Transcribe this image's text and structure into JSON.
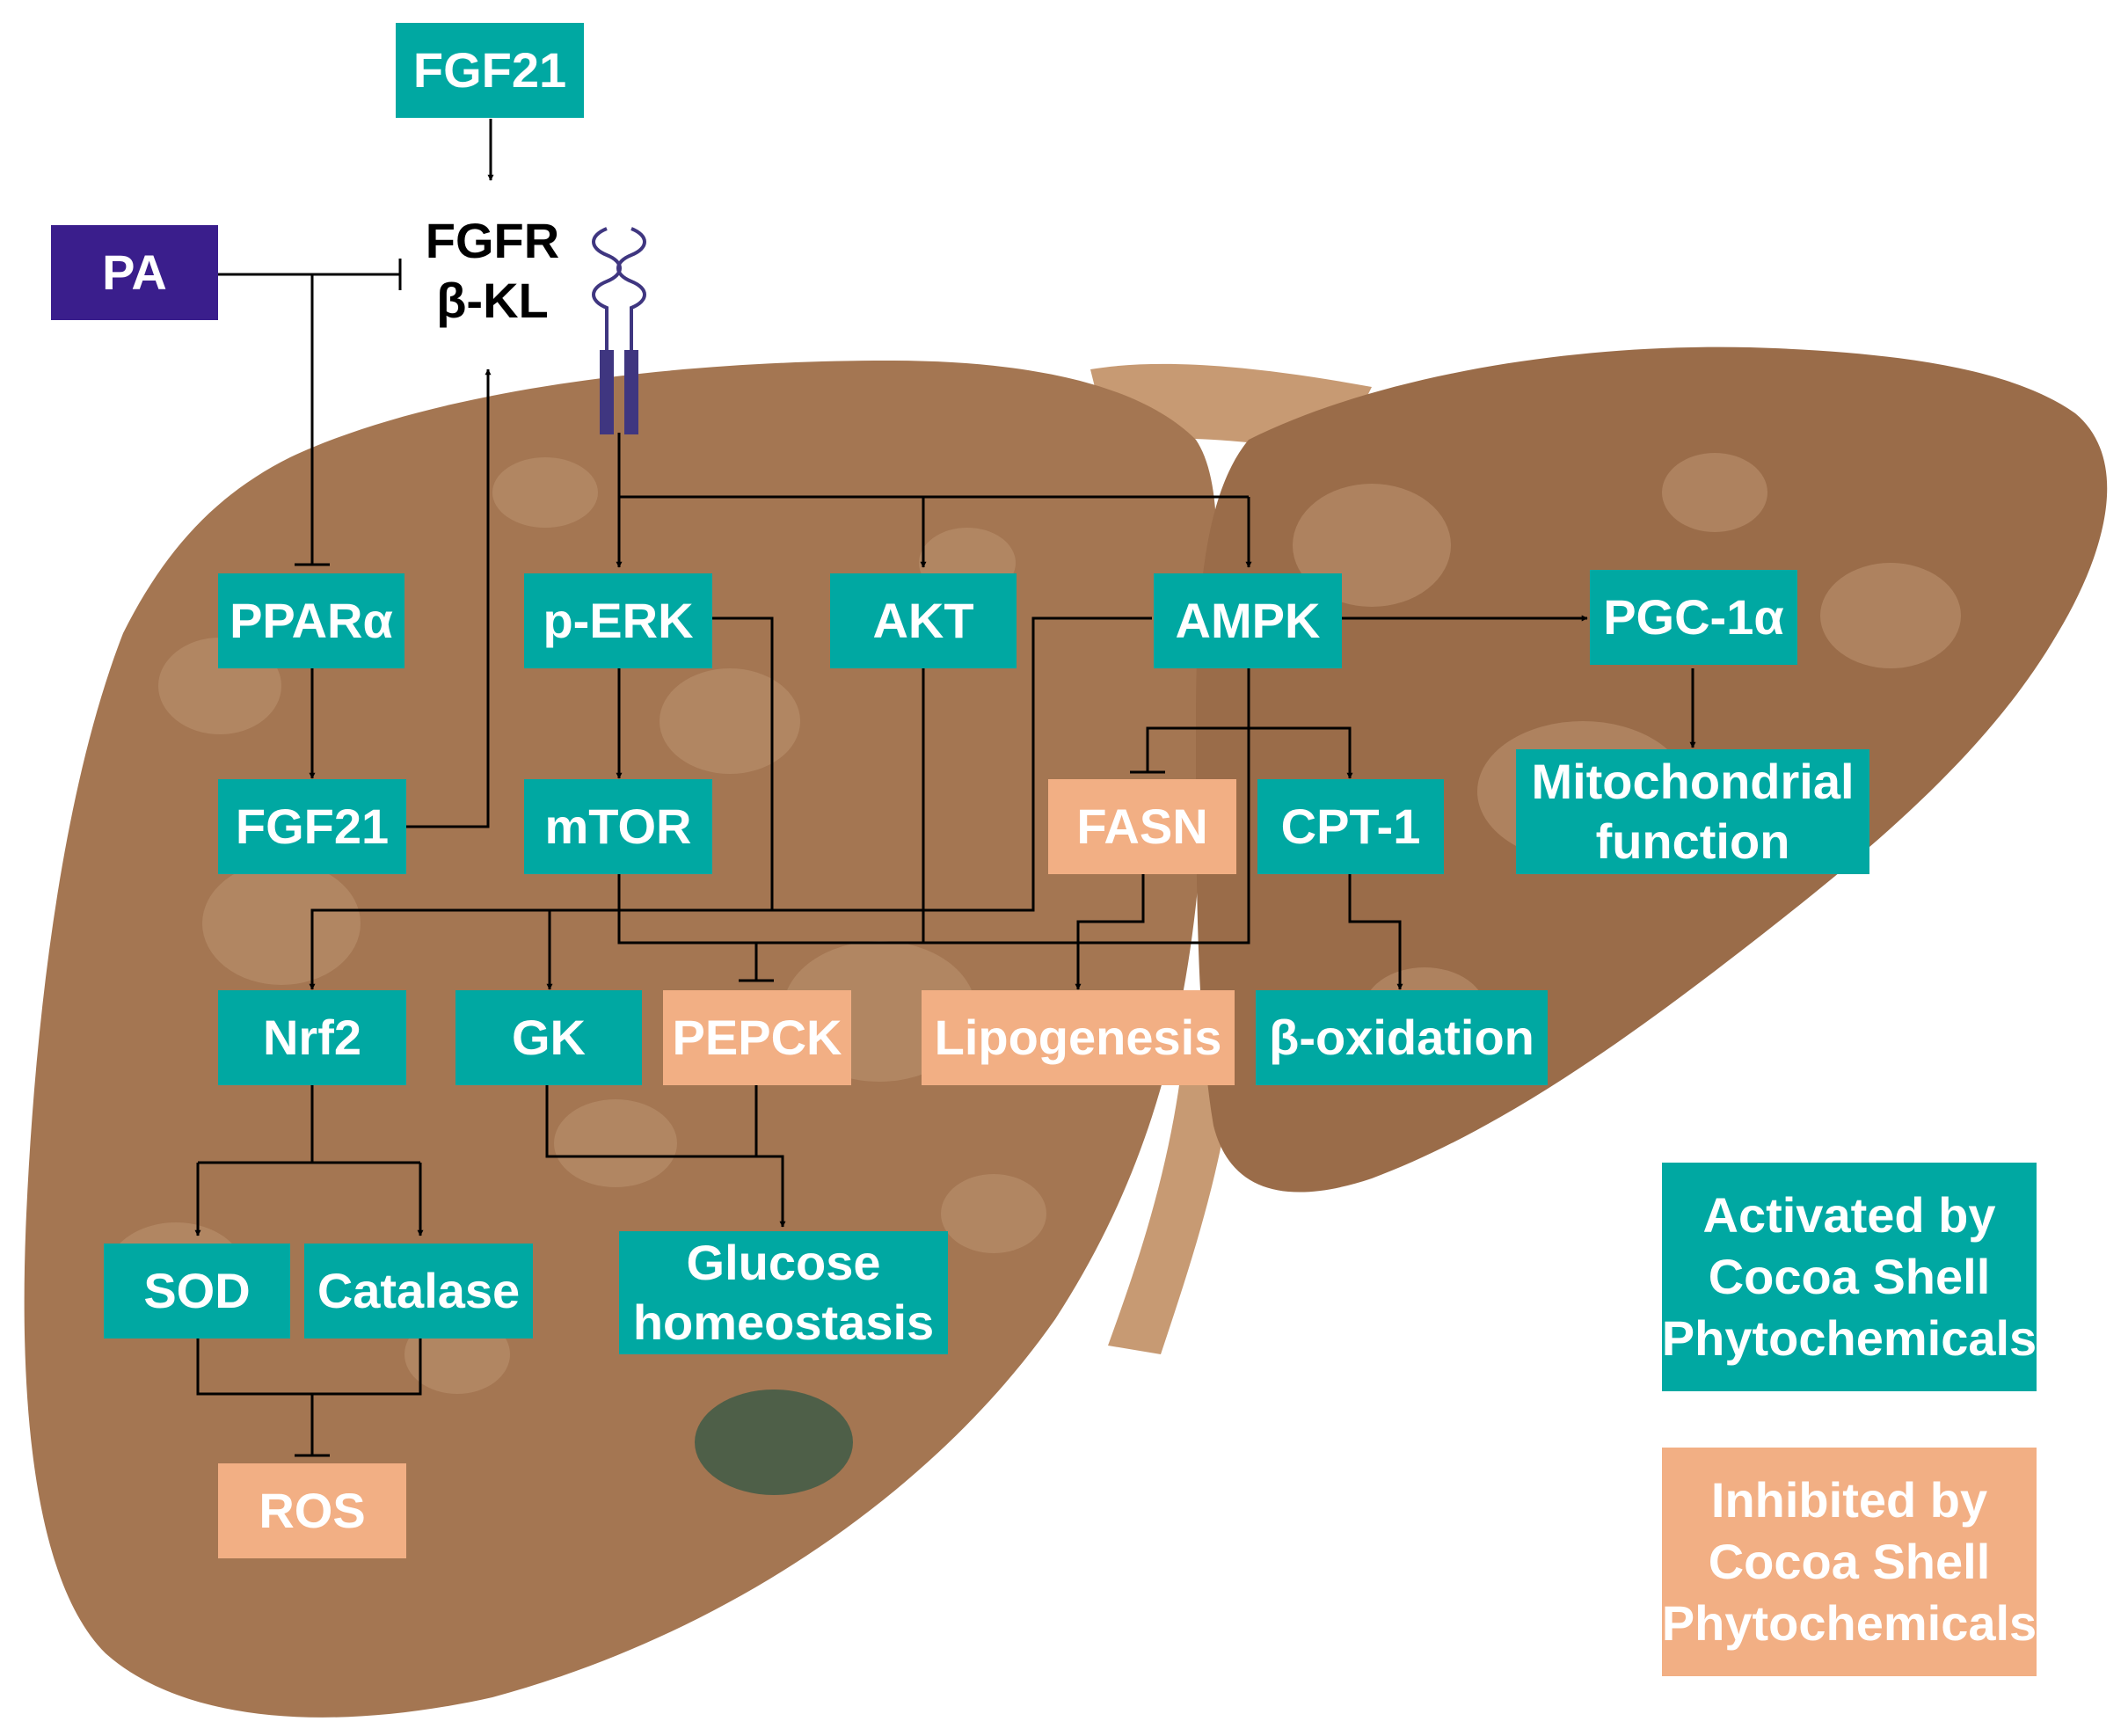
{
  "colors": {
    "activated": "#00A8A2",
    "inhibited": "#F2AF84",
    "pa": "#3A1E8C",
    "liver": "#A47652",
    "liver_shadow": "#8E6240",
    "ligament": "#C79A73"
  },
  "receptor": {
    "line1": "FGFR",
    "line2": "β-KL"
  },
  "nodes": {
    "fgf21_top": "FGF21",
    "pa": "PA",
    "ppara": "PPARα",
    "perk": "p-ERK",
    "akt": "AKT",
    "ampk": "AMPK",
    "pgc1a": "PGC-1α",
    "fgf21": "FGF21",
    "mtor": "mTOR",
    "fasn": "FASN",
    "cpt1": "CPT-1",
    "mito_line1": "Mitochondrial",
    "mito_line2": "function",
    "nrf2": "Nrf2",
    "gk": "GK",
    "pepck": "PEPCK",
    "lipogenesis": "Lipogenesis",
    "boxidation": "β-oxidation",
    "sod": "SOD",
    "catalase": "Catalase",
    "glucose_line1": "Glucose",
    "glucose_line2": "homeostasis",
    "ros": "ROS"
  },
  "legend": {
    "activated": [
      "Activated by",
      "Cocoa Shell",
      "Phytochemicals"
    ],
    "inhibited": [
      "Inhibited by",
      "Cocoa Shell",
      "Phytochemicals"
    ]
  }
}
